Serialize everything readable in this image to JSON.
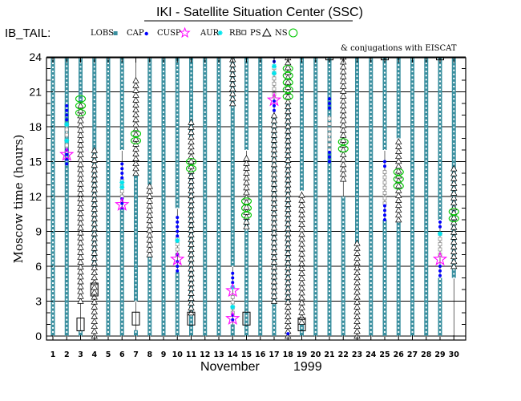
{
  "chart_data": {
    "type": "scatter",
    "title": "IKI - Satellite Situation Center (SSC)",
    "mode_label": "IB_TAIL:",
    "note": "& conjugations with EISCAT",
    "ylabel": "Moscow time (hours)",
    "xlabel": "November",
    "year": "1999",
    "ylim": [
      0,
      24
    ],
    "yticks": [
      0,
      3,
      6,
      9,
      12,
      15,
      18,
      21,
      24
    ],
    "xlim": [
      1,
      30
    ],
    "xticks": [
      "1",
      "2",
      "3",
      "4",
      "5",
      "6",
      "7",
      "8",
      "9",
      "10",
      "11",
      "12",
      "13",
      "14",
      "15",
      "16",
      "17",
      "18",
      "19",
      "20",
      "21",
      "22",
      "23",
      "24",
      "25",
      "26",
      "27",
      "28",
      "29",
      "30"
    ],
    "colors": {
      "lobs": "#3a8f9f",
      "cap": "#0000ff",
      "cusp": "#ff00ff",
      "aur": "#00e5ee",
      "rb": "#8c8c8c",
      "ps": "#000000",
      "ns": "#00c800",
      "grid": "#000000"
    },
    "legend": [
      {
        "name": "LOBS",
        "marker": "square-filled",
        "color": "#3a8f9f"
      },
      {
        "name": "CAP",
        "marker": "dot",
        "color": "#0000ff"
      },
      {
        "name": "CUSP",
        "marker": "star",
        "color": "#ff00ff"
      },
      {
        "name": "AUR",
        "marker": "asterisk",
        "color": "#00e5ee"
      },
      {
        "name": "RB",
        "marker": "square-open",
        "color": "#8c8c8c"
      },
      {
        "name": "PS",
        "marker": "triangle",
        "color": "#000000"
      },
      {
        "name": "NS",
        "marker": "circle",
        "color": "#00c800"
      }
    ],
    "series": [
      {
        "key": "lobs",
        "segments": [
          [
            1,
            0,
            24.5
          ],
          [
            2,
            0,
            20
          ],
          [
            2,
            14.8,
            24.5
          ],
          [
            3,
            0,
            0.5
          ],
          [
            3,
            20,
            24.5
          ],
          [
            4,
            6,
            24.5
          ],
          [
            5,
            0,
            24.5
          ],
          [
            6,
            0,
            11
          ],
          [
            6,
            16,
            24.5
          ],
          [
            7,
            0,
            0.5
          ],
          [
            7,
            3,
            14
          ],
          [
            8,
            0,
            7
          ],
          [
            8,
            13,
            24.5
          ],
          [
            9,
            0,
            24.5
          ],
          [
            10,
            0,
            5.5
          ],
          [
            10,
            11,
            24.5
          ],
          [
            11,
            0,
            14
          ],
          [
            11,
            17,
            24.5
          ],
          [
            12,
            0,
            24.5
          ],
          [
            13,
            0,
            24.5
          ],
          [
            14,
            0,
            1
          ],
          [
            14,
            6,
            24.5
          ],
          [
            15,
            0,
            10
          ],
          [
            15,
            16,
            24.5
          ],
          [
            16,
            0,
            24.5
          ],
          [
            17,
            0,
            19
          ],
          [
            18,
            3,
            20
          ],
          [
            19,
            0,
            1.2
          ],
          [
            19,
            12.5,
            24.5
          ],
          [
            20,
            0,
            24.5
          ],
          [
            21,
            0,
            24.5
          ],
          [
            22,
            0,
            12
          ],
          [
            23,
            8,
            24.5
          ],
          [
            24,
            0,
            24.5
          ],
          [
            25,
            0,
            10
          ],
          [
            25,
            16,
            24.5
          ],
          [
            26,
            0,
            10
          ],
          [
            26,
            17,
            24.5
          ],
          [
            27,
            0,
            24.5
          ],
          [
            28,
            0,
            24.5
          ],
          [
            29,
            0,
            5
          ],
          [
            29,
            10,
            24.5
          ],
          [
            30,
            5,
            24.5
          ]
        ]
      },
      {
        "key": "cap",
        "points": [
          [
            2,
            14.8
          ],
          [
            2,
            15.2
          ],
          [
            2,
            15.6
          ],
          [
            2,
            16
          ],
          [
            2,
            18.6
          ],
          [
            2,
            19
          ],
          [
            2,
            19.4
          ],
          [
            2,
            19.8
          ],
          [
            6,
            11
          ],
          [
            6,
            11.4
          ],
          [
            6,
            11.8
          ],
          [
            6,
            13.6
          ],
          [
            6,
            14
          ],
          [
            6,
            14.4
          ],
          [
            6,
            14.8
          ],
          [
            10,
            5.6
          ],
          [
            10,
            6
          ],
          [
            10,
            6.4
          ],
          [
            10,
            7
          ],
          [
            10,
            8.6
          ],
          [
            10,
            9
          ],
          [
            10,
            9.4
          ],
          [
            10,
            9.8
          ],
          [
            10,
            10.2
          ],
          [
            14,
            1.4
          ],
          [
            14,
            1.8
          ],
          [
            14,
            4.6
          ],
          [
            14,
            5
          ],
          [
            14,
            5.4
          ],
          [
            17,
            19.4
          ],
          [
            17,
            19.8
          ],
          [
            17,
            20.2
          ],
          [
            17,
            23.6
          ],
          [
            17,
            24
          ],
          [
            17,
            24.4
          ],
          [
            18,
            0.2
          ],
          [
            21,
            15
          ],
          [
            21,
            15.4
          ],
          [
            21,
            15.8
          ],
          [
            21,
            19.6
          ],
          [
            21,
            20
          ],
          [
            21,
            20.4
          ],
          [
            25,
            10
          ],
          [
            25,
            10.4
          ],
          [
            25,
            10.8
          ],
          [
            25,
            11.2
          ],
          [
            25,
            14.6
          ],
          [
            25,
            15
          ],
          [
            29,
            5.2
          ],
          [
            29,
            5.6
          ],
          [
            29,
            6
          ],
          [
            29,
            9.4
          ],
          [
            29,
            9.8
          ]
        ]
      },
      {
        "key": "cusp",
        "points": [
          [
            2,
            15.6
          ],
          [
            6,
            11.3
          ],
          [
            10,
            6.6
          ],
          [
            14,
            1.5
          ],
          [
            14,
            3.9
          ],
          [
            17,
            20.3
          ],
          [
            29,
            6.6
          ]
        ]
      },
      {
        "key": "aur",
        "points": [
          [
            2,
            16.8
          ],
          [
            2,
            18.2
          ],
          [
            6,
            12.8
          ],
          [
            6,
            13.2
          ],
          [
            10,
            8.2
          ],
          [
            14,
            2.5
          ],
          [
            14,
            4.2
          ],
          [
            17,
            22.6
          ],
          [
            17,
            23.2
          ],
          [
            29,
            8.8
          ]
        ]
      },
      {
        "key": "rb",
        "segments": [
          [
            2,
            16.4,
            18.2
          ],
          [
            6,
            12,
            13.4
          ],
          [
            10,
            7,
            8.4
          ],
          [
            14,
            2,
            3.6
          ],
          [
            17,
            20.8,
            23.4
          ],
          [
            21,
            16,
            19
          ],
          [
            25,
            11.4,
            14.4
          ],
          [
            29,
            7,
            8.8
          ]
        ]
      },
      {
        "key": "ps",
        "segments": [
          [
            3,
            3,
            20
          ],
          [
            4,
            0,
            16
          ],
          [
            7,
            14,
            22
          ],
          [
            8,
            7,
            13
          ],
          [
            11,
            2,
            18.5
          ],
          [
            14,
            20,
            25
          ],
          [
            15,
            9.4,
            15.5
          ],
          [
            17,
            3,
            19
          ],
          [
            18,
            0,
            24.5
          ],
          [
            19,
            1.2,
            12.5
          ],
          [
            22,
            13.5,
            25
          ],
          [
            23,
            0,
            8
          ],
          [
            26,
            10,
            17
          ],
          [
            30,
            6,
            14.5
          ]
        ]
      },
      {
        "key": "ns",
        "points": [
          [
            3,
            19.2
          ],
          [
            3,
            19.8
          ],
          [
            3,
            20.4
          ],
          [
            7,
            16.8
          ],
          [
            7,
            17.4
          ],
          [
            11,
            14.4
          ],
          [
            11,
            15
          ],
          [
            15,
            10.4
          ],
          [
            15,
            11
          ],
          [
            15,
            11.6
          ],
          [
            18,
            20.6
          ],
          [
            18,
            21.2
          ],
          [
            18,
            21.8
          ],
          [
            18,
            22.4
          ],
          [
            18,
            23
          ],
          [
            22,
            16.1
          ],
          [
            22,
            16.7
          ],
          [
            26,
            12.9
          ],
          [
            26,
            13.5
          ],
          [
            26,
            14.1
          ],
          [
            30,
            10.1
          ],
          [
            30,
            10.7
          ]
        ]
      },
      {
        "key": "conj",
        "boxes": [
          [
            3,
            1
          ],
          [
            4,
            4
          ],
          [
            7,
            1.5
          ],
          [
            11,
            1.5
          ],
          [
            15,
            1.5
          ],
          [
            19,
            1
          ],
          [
            21,
            24.3
          ],
          [
            25,
            24.3
          ],
          [
            29,
            24.3
          ]
        ]
      }
    ]
  }
}
